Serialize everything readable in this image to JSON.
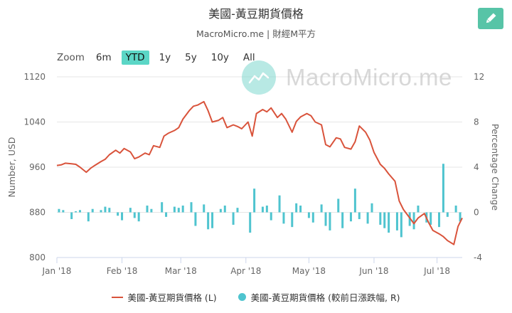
{
  "header": {
    "title": "美國-黃豆期貨價格",
    "subtitle": "MacroMicro.me | 財經M平方",
    "watermark": "MacroMicro.me"
  },
  "zoom": {
    "label": "Zoom",
    "buttons": [
      "6m",
      "YTD",
      "1y",
      "5y",
      "10y",
      "All"
    ],
    "active": "YTD"
  },
  "chart_data": {
    "type": "line",
    "ylabel_left": "Number, USD",
    "ylabel_right": "Percentage Change",
    "ylim_left": [
      800,
      1120
    ],
    "ylim_right": [
      -4,
      12
    ],
    "yticks_left": [
      800,
      880,
      960,
      1040,
      1120
    ],
    "yticks_right": [
      -4,
      0,
      4,
      8,
      12
    ],
    "x_range": [
      "2018-01-01",
      "2018-07-13"
    ],
    "xticks": [
      "Jan '18",
      "Feb '18",
      "Mar '18",
      "Apr '18",
      "May '18",
      "Jun '18",
      "Jul '18"
    ],
    "xtick_dates": [
      "2018-01-01",
      "2018-02-01",
      "2018-03-01",
      "2018-04-01",
      "2018-05-01",
      "2018-06-01",
      "2018-07-01"
    ],
    "grid": "horizontal",
    "legend_position": "bottom",
    "series": [
      {
        "name": "美國-黃豆期貨價格 (L)",
        "axis": "left",
        "type": "line",
        "color": "#d9533b",
        "x": [
          "2018-01-01",
          "2018-01-03",
          "2018-01-05",
          "2018-01-08",
          "2018-01-10",
          "2018-01-12",
          "2018-01-15",
          "2018-01-17",
          "2018-01-19",
          "2018-01-22",
          "2018-01-24",
          "2018-01-26",
          "2018-01-29",
          "2018-01-31",
          "2018-02-02",
          "2018-02-05",
          "2018-02-07",
          "2018-02-09",
          "2018-02-12",
          "2018-02-14",
          "2018-02-16",
          "2018-02-19",
          "2018-02-21",
          "2018-02-23",
          "2018-02-26",
          "2018-02-28",
          "2018-03-02",
          "2018-03-05",
          "2018-03-07",
          "2018-03-09",
          "2018-03-12",
          "2018-03-14",
          "2018-03-16",
          "2018-03-19",
          "2018-03-21",
          "2018-03-23",
          "2018-03-26",
          "2018-03-28",
          "2018-03-30",
          "2018-04-02",
          "2018-04-04",
          "2018-04-06",
          "2018-04-09",
          "2018-04-11",
          "2018-04-13",
          "2018-04-16",
          "2018-04-18",
          "2018-04-20",
          "2018-04-23",
          "2018-04-25",
          "2018-04-27",
          "2018-04-30",
          "2018-05-02",
          "2018-05-04",
          "2018-05-07",
          "2018-05-09",
          "2018-05-11",
          "2018-05-14",
          "2018-05-16",
          "2018-05-18",
          "2018-05-21",
          "2018-05-23",
          "2018-05-25",
          "2018-05-28",
          "2018-05-30",
          "2018-06-01",
          "2018-06-04",
          "2018-06-06",
          "2018-06-08",
          "2018-06-11",
          "2018-06-13",
          "2018-06-15",
          "2018-06-18",
          "2018-06-20",
          "2018-06-22",
          "2018-06-25",
          "2018-06-27",
          "2018-06-29",
          "2018-07-02",
          "2018-07-04",
          "2018-07-06",
          "2018-07-09",
          "2018-07-11",
          "2018-07-13"
        ],
        "values": [
          963,
          964,
          967,
          966,
          965,
          960,
          951,
          958,
          963,
          970,
          974,
          982,
          990,
          985,
          993,
          987,
          975,
          978,
          985,
          982,
          998,
          995,
          1015,
          1020,
          1025,
          1030,
          1045,
          1060,
          1068,
          1070,
          1076,
          1060,
          1040,
          1043,
          1048,
          1030,
          1035,
          1032,
          1028,
          1040,
          1015,
          1055,
          1062,
          1058,
          1065,
          1048,
          1055,
          1045,
          1022,
          1041,
          1049,
          1055,
          1051,
          1040,
          1035,
          1000,
          996,
          1012,
          1010,
          995,
          992,
          1005,
          1033,
          1022,
          1008,
          986,
          965,
          958,
          948,
          935,
          900,
          885,
          870,
          860,
          870,
          878,
          862,
          848,
          842,
          837,
          830,
          823,
          855,
          870
        ]
      },
      {
        "name": "美國-黃豆期貨價格 (較前日漲跌幅, R)",
        "axis": "right",
        "type": "column",
        "color": "#4fc4cf",
        "x": [
          "2018-01-02",
          "2018-01-04",
          "2018-01-08",
          "2018-01-10",
          "2018-01-12",
          "2018-01-16",
          "2018-01-18",
          "2018-01-22",
          "2018-01-24",
          "2018-01-26",
          "2018-01-30",
          "2018-02-01",
          "2018-02-05",
          "2018-02-07",
          "2018-02-09",
          "2018-02-13",
          "2018-02-15",
          "2018-02-20",
          "2018-02-22",
          "2018-02-26",
          "2018-02-28",
          "2018-03-02",
          "2018-03-06",
          "2018-03-08",
          "2018-03-12",
          "2018-03-14",
          "2018-03-16",
          "2018-03-20",
          "2018-03-22",
          "2018-03-26",
          "2018-03-28",
          "2018-04-03",
          "2018-04-05",
          "2018-04-09",
          "2018-04-11",
          "2018-04-13",
          "2018-04-17",
          "2018-04-19",
          "2018-04-23",
          "2018-04-25",
          "2018-04-27",
          "2018-05-01",
          "2018-05-03",
          "2018-05-07",
          "2018-05-09",
          "2018-05-11",
          "2018-05-15",
          "2018-05-17",
          "2018-05-21",
          "2018-05-23",
          "2018-05-25",
          "2018-05-29",
          "2018-05-31",
          "2018-06-04",
          "2018-06-06",
          "2018-06-08",
          "2018-06-12",
          "2018-06-14",
          "2018-06-18",
          "2018-06-20",
          "2018-06-22",
          "2018-06-26",
          "2018-06-28",
          "2018-07-02",
          "2018-07-04",
          "2018-07-06",
          "2018-07-10",
          "2018-07-12"
        ],
        "values": [
          0.3,
          0.2,
          -0.6,
          0.1,
          0.2,
          -0.8,
          0.3,
          0.2,
          0.5,
          0.4,
          -0.3,
          -0.7,
          0.4,
          -0.5,
          -0.8,
          0.6,
          0.3,
          0.9,
          -0.4,
          0.5,
          0.4,
          0.6,
          0.9,
          -1.2,
          0.7,
          -1.5,
          -1.4,
          0.3,
          0.6,
          -1.1,
          0.4,
          -1.8,
          2.1,
          0.5,
          0.6,
          -0.7,
          1.5,
          -1.0,
          -1.3,
          0.8,
          0.6,
          -0.5,
          -0.9,
          0.7,
          -1.2,
          -1.6,
          1.2,
          -1.4,
          -0.8,
          2.1,
          -0.6,
          -1.0,
          0.8,
          -1.1,
          -1.4,
          -1.8,
          -1.6,
          -2.2,
          -1.2,
          -1.5,
          0.6,
          -0.9,
          -1.1,
          -1.3,
          4.3,
          -0.4,
          0.6,
          -0.8
        ]
      }
    ]
  },
  "legend": {
    "items": [
      "美國-黃豆期貨價格 (L)",
      "美國-黃豆期貨價格 (較前日漲跌幅, R)"
    ]
  }
}
